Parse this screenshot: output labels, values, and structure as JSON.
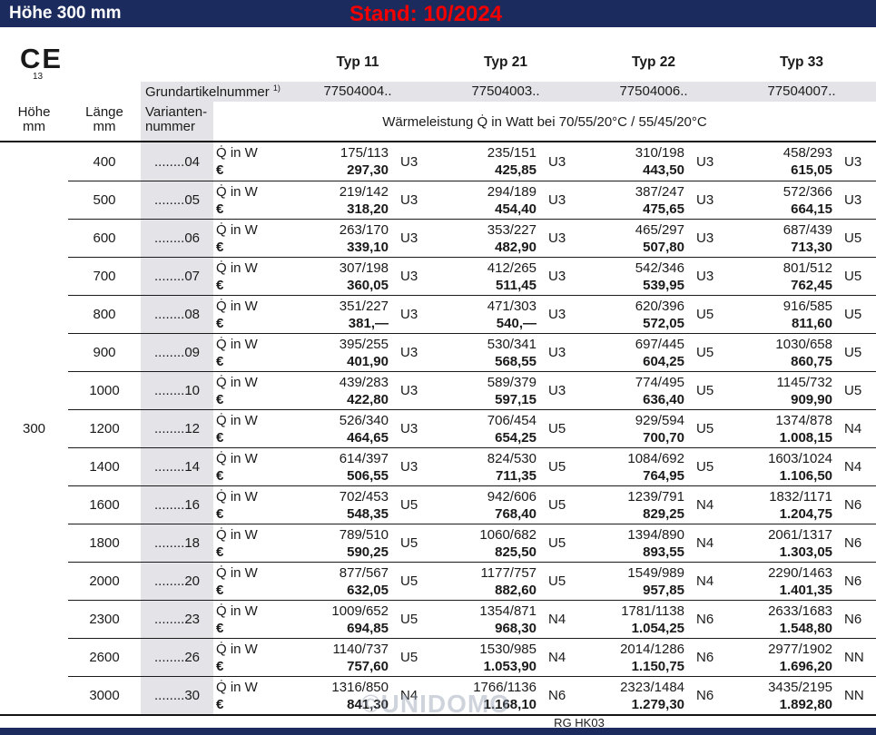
{
  "topbar": {
    "title": "Höhe 300 mm",
    "stand": "Stand: 10/2024"
  },
  "header": {
    "ce_mark": "CE",
    "ce_number": "13",
    "types": [
      "Typ 11",
      "Typ 21",
      "Typ 22",
      "Typ 33"
    ],
    "grundartikel_label": "Grundartikelnummer",
    "grundartikel_sup": "1)",
    "grundartikel_numbers": [
      "77504004..",
      "77504003..",
      "77504006..",
      "77504007.."
    ],
    "col_hoehe": {
      "line1": "Höhe",
      "line2": "mm"
    },
    "col_laenge": {
      "line1": "Länge",
      "line2": "mm"
    },
    "col_variant": {
      "line1": "Varianten-",
      "line2": "nummer"
    },
    "leistung_header": "Wärmeleistung Q̇ in Watt bei 70/55/20°C / 55/45/20°C"
  },
  "row_labels": {
    "watt": "Q̇ in W",
    "euro": "€"
  },
  "rows": [
    {
      "hoehe": "",
      "laenge": "400",
      "variante": "........04",
      "cells": [
        {
          "watt": "175/113",
          "price": "297,30",
          "code": "U3"
        },
        {
          "watt": "235/151",
          "price": "425,85",
          "code": "U3"
        },
        {
          "watt": "310/198",
          "price": "443,50",
          "code": "U3"
        },
        {
          "watt": "458/293",
          "price": "615,05",
          "code": "U3"
        }
      ]
    },
    {
      "hoehe": "",
      "laenge": "500",
      "variante": "........05",
      "cells": [
        {
          "watt": "219/142",
          "price": "318,20",
          "code": "U3"
        },
        {
          "watt": "294/189",
          "price": "454,40",
          "code": "U3"
        },
        {
          "watt": "387/247",
          "price": "475,65",
          "code": "U3"
        },
        {
          "watt": "572/366",
          "price": "664,15",
          "code": "U3"
        }
      ]
    },
    {
      "hoehe": "",
      "laenge": "600",
      "variante": "........06",
      "cells": [
        {
          "watt": "263/170",
          "price": "339,10",
          "code": "U3"
        },
        {
          "watt": "353/227",
          "price": "482,90",
          "code": "U3"
        },
        {
          "watt": "465/297",
          "price": "507,80",
          "code": "U3"
        },
        {
          "watt": "687/439",
          "price": "713,30",
          "code": "U5"
        }
      ]
    },
    {
      "hoehe": "",
      "laenge": "700",
      "variante": "........07",
      "cells": [
        {
          "watt": "307/198",
          "price": "360,05",
          "code": "U3"
        },
        {
          "watt": "412/265",
          "price": "511,45",
          "code": "U3"
        },
        {
          "watt": "542/346",
          "price": "539,95",
          "code": "U3"
        },
        {
          "watt": "801/512",
          "price": "762,45",
          "code": "U5"
        }
      ]
    },
    {
      "hoehe": "",
      "laenge": "800",
      "variante": "........08",
      "cells": [
        {
          "watt": "351/227",
          "price": "381,—",
          "code": "U3"
        },
        {
          "watt": "471/303",
          "price": "540,—",
          "code": "U3"
        },
        {
          "watt": "620/396",
          "price": "572,05",
          "code": "U5"
        },
        {
          "watt": "916/585",
          "price": "811,60",
          "code": "U5"
        }
      ]
    },
    {
      "hoehe": "",
      "laenge": "900",
      "variante": "........09",
      "cells": [
        {
          "watt": "395/255",
          "price": "401,90",
          "code": "U3"
        },
        {
          "watt": "530/341",
          "price": "568,55",
          "code": "U3"
        },
        {
          "watt": "697/445",
          "price": "604,25",
          "code": "U5"
        },
        {
          "watt": "1030/658",
          "price": "860,75",
          "code": "U5"
        }
      ]
    },
    {
      "hoehe": "",
      "laenge": "1000",
      "variante": "........10",
      "cells": [
        {
          "watt": "439/283",
          "price": "422,80",
          "code": "U3"
        },
        {
          "watt": "589/379",
          "price": "597,15",
          "code": "U3"
        },
        {
          "watt": "774/495",
          "price": "636,40",
          "code": "U5"
        },
        {
          "watt": "1145/732",
          "price": "909,90",
          "code": "U5"
        }
      ]
    },
    {
      "hoehe": "300",
      "laenge": "1200",
      "variante": "........12",
      "cells": [
        {
          "watt": "526/340",
          "price": "464,65",
          "code": "U3"
        },
        {
          "watt": "706/454",
          "price": "654,25",
          "code": "U5"
        },
        {
          "watt": "929/594",
          "price": "700,70",
          "code": "U5"
        },
        {
          "watt": "1374/878",
          "price": "1.008,15",
          "code": "N4"
        }
      ]
    },
    {
      "hoehe": "",
      "laenge": "1400",
      "variante": "........14",
      "cells": [
        {
          "watt": "614/397",
          "price": "506,55",
          "code": "U3"
        },
        {
          "watt": "824/530",
          "price": "711,35",
          "code": "U5"
        },
        {
          "watt": "1084/692",
          "price": "764,95",
          "code": "U5"
        },
        {
          "watt": "1603/1024",
          "price": "1.106,50",
          "code": "N4"
        }
      ]
    },
    {
      "hoehe": "",
      "laenge": "1600",
      "variante": "........16",
      "cells": [
        {
          "watt": "702/453",
          "price": "548,35",
          "code": "U5"
        },
        {
          "watt": "942/606",
          "price": "768,40",
          "code": "U5"
        },
        {
          "watt": "1239/791",
          "price": "829,25",
          "code": "N4"
        },
        {
          "watt": "1832/1171",
          "price": "1.204,75",
          "code": "N6"
        }
      ]
    },
    {
      "hoehe": "",
      "laenge": "1800",
      "variante": "........18",
      "cells": [
        {
          "watt": "789/510",
          "price": "590,25",
          "code": "U5"
        },
        {
          "watt": "1060/682",
          "price": "825,50",
          "code": "U5"
        },
        {
          "watt": "1394/890",
          "price": "893,55",
          "code": "N4"
        },
        {
          "watt": "2061/1317",
          "price": "1.303,05",
          "code": "N6"
        }
      ]
    },
    {
      "hoehe": "",
      "laenge": "2000",
      "variante": "........20",
      "cells": [
        {
          "watt": "877/567",
          "price": "632,05",
          "code": "U5"
        },
        {
          "watt": "1177/757",
          "price": "882,60",
          "code": "U5"
        },
        {
          "watt": "1549/989",
          "price": "957,85",
          "code": "N4"
        },
        {
          "watt": "2290/1463",
          "price": "1.401,35",
          "code": "N6"
        }
      ]
    },
    {
      "hoehe": "",
      "laenge": "2300",
      "variante": "........23",
      "cells": [
        {
          "watt": "1009/652",
          "price": "694,85",
          "code": "U5"
        },
        {
          "watt": "1354/871",
          "price": "968,30",
          "code": "N4"
        },
        {
          "watt": "1781/1138",
          "price": "1.054,25",
          "code": "N6"
        },
        {
          "watt": "2633/1683",
          "price": "1.548,80",
          "code": "N6"
        }
      ]
    },
    {
      "hoehe": "",
      "laenge": "2600",
      "variante": "........26",
      "cells": [
        {
          "watt": "1140/737",
          "price": "757,60",
          "code": "U5"
        },
        {
          "watt": "1530/985",
          "price": "1.053,90",
          "code": "N4"
        },
        {
          "watt": "2014/1286",
          "price": "1.150,75",
          "code": "N6"
        },
        {
          "watt": "2977/1902",
          "price": "1.696,20",
          "code": "NN"
        }
      ]
    },
    {
      "hoehe": "",
      "laenge": "3000",
      "variante": "........30",
      "cells": [
        {
          "watt": "1316/850",
          "price": "841,30",
          "code": "N4"
        },
        {
          "watt": "1766/1136",
          "price": "1.168,10",
          "code": "N6"
        },
        {
          "watt": "2323/1484",
          "price": "1.279,30",
          "code": "N6"
        },
        {
          "watt": "3435/2195",
          "price": "1.892,80",
          "code": "NN"
        }
      ]
    }
  ],
  "footer": {
    "code": "RG HK03",
    "watermark": "©UNIDOMO"
  },
  "colors": {
    "navy": "#1c2b5e",
    "stand_red": "#f20000",
    "cell_gray": "#e4e4e8"
  }
}
